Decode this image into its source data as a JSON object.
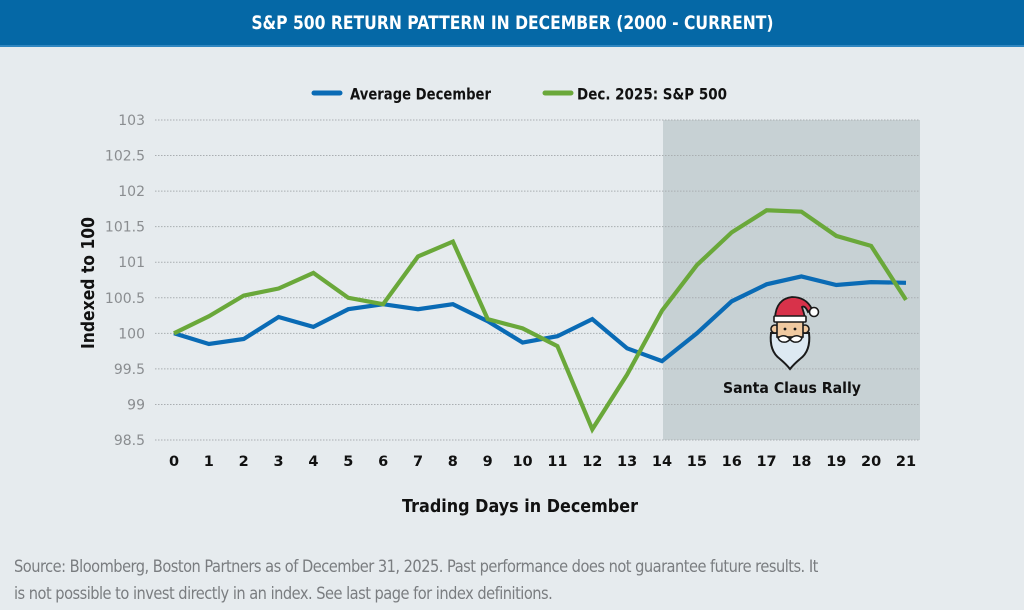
{
  "header": {
    "title": "S&P 500 RETURN PATTERN IN DECEMBER  (2000 - CURRENT)"
  },
  "colors": {
    "header_bg": "#0568a6",
    "background": "#e6ebee",
    "shaded_region": "#c7d1d4",
    "average_december": "#0a6bb5",
    "dec_2025": "#6aa83a",
    "gridline": "#a9aeb1"
  },
  "chart_data": {
    "type": "line",
    "title": "S&P 500 RETURN PATTERN IN DECEMBER  (2000 - CURRENT)",
    "xlabel": "Trading Days in December",
    "ylabel": "Indexed to 100",
    "x": [
      0,
      1,
      2,
      3,
      4,
      5,
      6,
      7,
      8,
      9,
      10,
      11,
      12,
      13,
      14,
      15,
      16,
      17,
      18,
      19,
      20,
      21
    ],
    "x_tick_labels": [
      "0",
      "1",
      "2",
      "3",
      "4",
      "5",
      "6",
      "7",
      "8",
      "9",
      "10",
      "11",
      "12",
      "13",
      "14",
      "15",
      "16",
      "17",
      "18",
      "19",
      "20",
      "21"
    ],
    "ylim": [
      98.5,
      103
    ],
    "y_ticks": [
      103,
      102.5,
      102,
      101.5,
      101,
      100.5,
      100,
      99.5,
      99,
      98.5
    ],
    "y_tick_labels": [
      "103",
      "102.5",
      "102",
      "101.5",
      "101",
      "100.5",
      "100",
      "99.5",
      "99",
      "98.5"
    ],
    "grid": "horizontal-dotted",
    "legend_position": "top-center",
    "series": [
      {
        "name": "Average December",
        "color": "#0a6bb5",
        "values": [
          100.0,
          99.85,
          99.92,
          100.23,
          100.09,
          100.34,
          100.41,
          100.34,
          100.41,
          100.17,
          99.87,
          99.96,
          100.2,
          99.79,
          99.61,
          100.0,
          100.45,
          100.69,
          100.8,
          100.68,
          100.72,
          100.71
        ]
      },
      {
        "name": "Dec. 2025: S&P 500",
        "color": "#6aa83a",
        "values": [
          100.0,
          100.24,
          100.53,
          100.63,
          100.85,
          100.5,
          100.41,
          101.08,
          101.29,
          100.2,
          100.07,
          99.82,
          98.65,
          99.42,
          100.32,
          100.96,
          101.42,
          101.73,
          101.71,
          101.37,
          101.23,
          100.47
        ]
      }
    ],
    "shaded_region": {
      "x_start": 14,
      "x_end": 21,
      "label": "Santa Claus Rally"
    },
    "annotations": [
      {
        "text": "Santa Claus Rally",
        "icon": "santa-icon"
      }
    ]
  },
  "footer": {
    "source_line1": "Source: Bloomberg, Boston Partners as of December 31, 2025. Past performance does not guarantee future results. It",
    "source_line2": "is not possible to invest directly in an index. See last page for index definitions."
  }
}
